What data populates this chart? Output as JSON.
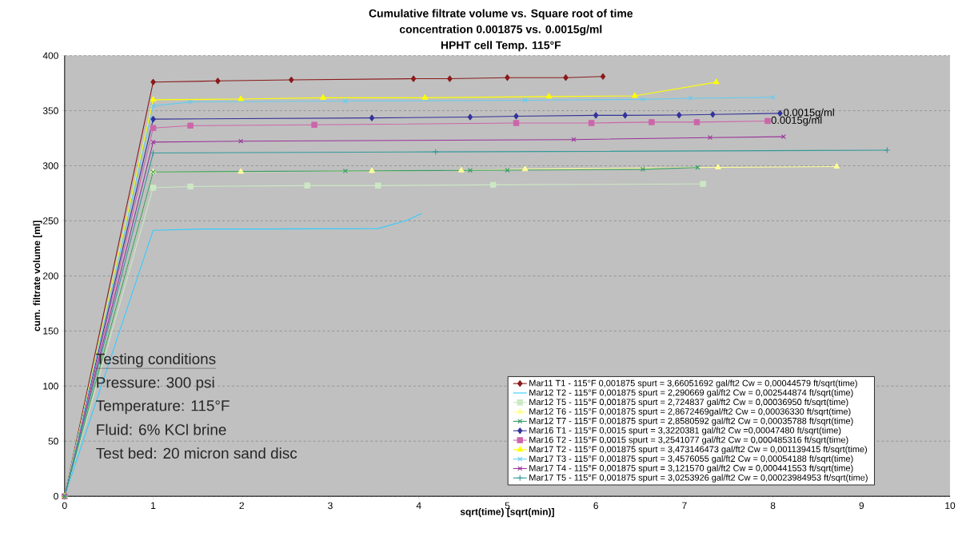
{
  "chart_data": {
    "type": "line",
    "title": "Cumulative filtrate volume vs. Square root of time",
    "subtitle": [
      "concentration 0.001875 vs. 0.0015g/ml",
      "HPHT cell Temp. 115°F"
    ],
    "xlabel": "sqrt(time) [sqrt(min)]",
    "ylabel": "cum. filtrate volume [ml]",
    "xlim": [
      0,
      10
    ],
    "xticks": [
      0,
      1,
      2,
      3,
      4,
      5,
      6,
      7,
      8,
      9,
      10
    ],
    "ylim": [
      0,
      400
    ],
    "yticks": [
      0,
      50,
      100,
      150,
      200,
      250,
      300,
      350,
      400
    ],
    "grid": "y",
    "legend": "bottom right",
    "line_style": "solid",
    "annotations": [
      {
        "text": "0.0015g/ml",
        "x": 8.08,
        "y": 347.6
      },
      {
        "text": "0.0015g/ml",
        "x": 7.94,
        "y": 340.6
      },
      "Testing conditions",
      "Pressure: 300 psi",
      "Temperature: 115°F",
      "Fluid: 6% KCl brine",
      "Test bed: 20 micron sand disc"
    ],
    "series": [
      {
        "name": "Mar11 T1 - 115°F 0,001875 spurt = 3,66051692 gal/ft2 Cw = 0,00044579 ft/sqrt(time)",
        "color": "#8B1A1A",
        "marker": "diamond",
        "x": [
          0,
          1,
          1.73,
          2.56,
          3.94,
          4.35,
          5.0,
          5.66,
          6.08
        ],
        "values": [
          0,
          376,
          377,
          378,
          379,
          379,
          380,
          380,
          381
        ]
      },
      {
        "name": "Mar12 T2 - 115°F 0,001875 spurt = 2,290669 gal/ft2 Cw = 0,002544874 ft/sqrt(time)",
        "color": "#33CCFF",
        "marker": "none",
        "x": [
          0,
          1,
          1.58,
          2.34,
          3.54,
          3.88,
          4.03
        ],
        "values": [
          0,
          241.5,
          242.6,
          242.6,
          243,
          250.8,
          256.7
        ]
      },
      {
        "name": "Mar12 T5 - 115°F 0,001875 spurt = 2,724837 gal/ft2 Cw = 0,00036950 ft/sqrt(time)",
        "color": "#CCE8C4",
        "marker": "square",
        "x": [
          0,
          1,
          1.42,
          2.74,
          3.54,
          4.84,
          7.21
        ],
        "values": [
          0,
          280.1,
          281.2,
          282,
          282,
          282.7,
          283.5
        ]
      },
      {
        "name": "Mar12 T6 - 115°F 0,001875 spurt = 2,8672469gal/ft2 Cw = 0,00036330 ft/sqrt(time)",
        "color": "#FFFF99",
        "marker": "triangle",
        "x": [
          0,
          1,
          1.99,
          3.47,
          4.48,
          5.2,
          7.38,
          8.72
        ],
        "values": [
          0,
          294.4,
          294.6,
          295.3,
          295.8,
          296.8,
          298.5,
          299.3
        ]
      },
      {
        "name": "Mar12 T7 - 115°F 0,001875 spurt = 2,8580592 gal/ft2 Cw = 0,00035788 ft/sqrt(time)",
        "color": "#339966",
        "marker": "cross",
        "x": [
          0,
          1,
          3.17,
          4.58,
          5.0,
          6.53,
          7.15
        ],
        "values": [
          0,
          294.4,
          295.3,
          295.8,
          296,
          296.8,
          298.4
        ]
      },
      {
        "name": "Mar16 T1 - 115°F 0,0015 spurt = 3,3220381 gal/ft2 Cw =0,00047480 ft/sqrt(time)",
        "color": "#333399",
        "marker": "diamond",
        "x": [
          0,
          1,
          3.47,
          4.58,
          5.1,
          6.0,
          6.33,
          6.94,
          7.32,
          8.08
        ],
        "values": [
          0,
          342.3,
          343.4,
          344.2,
          345,
          345.8,
          345.8,
          346,
          346.6,
          347.6
        ]
      },
      {
        "name": "Mar16 T2 - 115°F 0,0015 spurt = 3,2541077 gal/ft2 Cw = 0,000485316 ft/sqrt(time)",
        "color": "#CC66AA",
        "marker": "square",
        "x": [
          0,
          1,
          1.42,
          2.82,
          5.1,
          5.95,
          6.63,
          7.14,
          7.94
        ],
        "values": [
          0,
          334.3,
          336.4,
          337.2,
          338.8,
          338.8,
          339.6,
          339.6,
          340.6
        ]
      },
      {
        "name": "Mar17 T2 - 115°F 0,001875 spurt = 3,473146473 gal/ft2 Cw = 0,001139415 ft/sqrt(time)",
        "color": "#FFFF00",
        "marker": "triangle",
        "x": [
          0,
          1,
          1.99,
          2.92,
          4.07,
          5.47,
          6.44,
          7.36
        ],
        "values": [
          0,
          359.9,
          360.6,
          361.7,
          361.7,
          362.8,
          363.5,
          375.9
        ]
      },
      {
        "name": "Mar17 T3 - 115°F 0,001875 spurt = 3,4576055 gal/ft2 Cw = 0,00054188 ft/sqrt(time)",
        "color": "#66CCEE",
        "marker": "cross",
        "x": [
          0,
          1,
          1.42,
          3.17,
          5.2,
          6.53,
          7.07,
          8.0
        ],
        "values": [
          0,
          354.3,
          357.9,
          358.7,
          359.5,
          360.3,
          361.3,
          362.1
        ]
      },
      {
        "name": "Mar17 T4 - 115°F 0,001875 spurt = 3,121570 gal/ft2 Cw = 0,000441553 ft/sqrt(time)",
        "color": "#993399",
        "marker": "cross",
        "x": [
          0,
          1,
          1.99,
          5.75,
          7.29,
          8.12
        ],
        "values": [
          0,
          321.5,
          322.3,
          323.8,
          325.6,
          326.4
        ]
      },
      {
        "name": "Mar17 T5 - 115°F 0,001875 spurt = 3,0253926 gal/ft2 Cw = 0,00023984953 ft/sqrt(time)",
        "color": "#339999",
        "marker": "plus",
        "x": [
          0,
          1,
          4.19,
          9.29
        ],
        "values": [
          0,
          311.6,
          312.6,
          314.1
        ]
      }
    ]
  }
}
